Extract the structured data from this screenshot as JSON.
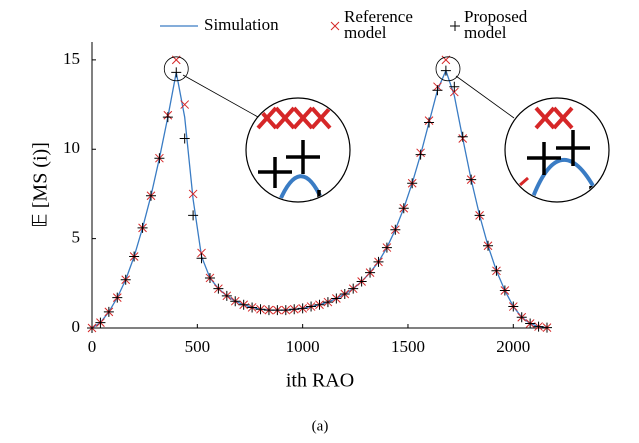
{
  "chart_data": {
    "type": "line",
    "x_label": "ith RAO",
    "y_label": "𝔼 [MS (i)]",
    "caption": "(a)",
    "xlim": [
      0,
      2160
    ],
    "ylim": [
      0,
      16
    ],
    "xticks": [
      0,
      500,
      1000,
      1500,
      2000
    ],
    "yticks": [
      0,
      5,
      10,
      15
    ],
    "x": [
      0,
      40,
      80,
      120,
      160,
      200,
      240,
      280,
      320,
      360,
      400,
      440,
      480,
      520,
      560,
      600,
      640,
      680,
      720,
      760,
      800,
      840,
      880,
      920,
      960,
      1000,
      1040,
      1080,
      1120,
      1160,
      1200,
      1240,
      1280,
      1320,
      1360,
      1400,
      1440,
      1480,
      1520,
      1560,
      1600,
      1640,
      1680,
      1720,
      1760,
      1800,
      1840,
      1880,
      1920,
      1960,
      2000,
      2040,
      2080,
      2120,
      2160
    ],
    "series": [
      {
        "name": "Simulation",
        "color": "#3a7cc4",
        "style": "line",
        "values": [
          0,
          0.3,
          0.9,
          1.7,
          2.7,
          4.0,
          5.6,
          7.4,
          9.5,
          11.8,
          14.3,
          11.8,
          7.2,
          4.0,
          2.8,
          2.2,
          1.8,
          1.5,
          1.3,
          1.15,
          1.05,
          1.0,
          1.0,
          1.0,
          1.05,
          1.1,
          1.2,
          1.3,
          1.45,
          1.65,
          1.9,
          2.2,
          2.6,
          3.1,
          3.7,
          4.5,
          5.5,
          6.7,
          8.1,
          9.7,
          11.5,
          13.3,
          14.4,
          13.0,
          10.6,
          8.3,
          6.3,
          4.6,
          3.2,
          2.1,
          1.2,
          0.6,
          0.25,
          0.08,
          0.02
        ]
      },
      {
        "name": "Reference model",
        "color": "#d62728",
        "style": "x",
        "values": [
          0,
          0.3,
          0.9,
          1.7,
          2.7,
          4.0,
          5.6,
          7.4,
          9.5,
          11.9,
          15.0,
          12.5,
          7.5,
          4.2,
          2.8,
          2.2,
          1.8,
          1.5,
          1.3,
          1.15,
          1.05,
          1.0,
          1.0,
          1.0,
          1.05,
          1.1,
          1.2,
          1.3,
          1.45,
          1.65,
          1.9,
          2.2,
          2.6,
          3.1,
          3.7,
          4.5,
          5.5,
          6.7,
          8.1,
          9.8,
          11.6,
          13.5,
          15.0,
          13.2,
          10.6,
          8.3,
          6.3,
          4.6,
          3.2,
          2.1,
          1.2,
          0.6,
          0.25,
          0.08,
          0.02
        ]
      },
      {
        "name": "Proposed model",
        "color": "#000000",
        "style": "plus",
        "values": [
          0,
          0.3,
          0.9,
          1.7,
          2.7,
          4.0,
          5.6,
          7.4,
          9.5,
          11.8,
          14.3,
          10.6,
          6.3,
          3.9,
          2.8,
          2.2,
          1.8,
          1.5,
          1.3,
          1.15,
          1.05,
          1.0,
          1.0,
          1.0,
          1.05,
          1.1,
          1.2,
          1.3,
          1.45,
          1.65,
          1.9,
          2.2,
          2.6,
          3.1,
          3.7,
          4.5,
          5.5,
          6.7,
          8.1,
          9.7,
          11.5,
          13.3,
          14.4,
          13.5,
          10.7,
          8.3,
          6.3,
          4.6,
          3.2,
          2.1,
          1.2,
          0.6,
          0.25,
          0.08,
          0.02
        ]
      }
    ]
  }
}
